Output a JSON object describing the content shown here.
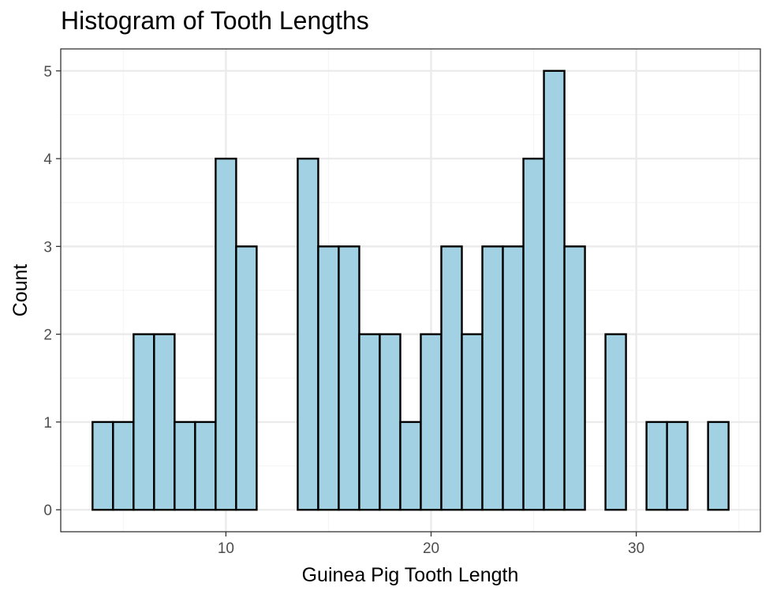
{
  "chart_data": {
    "type": "bar",
    "title": "Histogram of Tooth Lengths",
    "xlabel": "Guinea Pig Tooth Length",
    "ylabel": "Count",
    "bin_width": 1,
    "bins": [
      {
        "x0": 3.5,
        "x1": 4.5,
        "count": 1
      },
      {
        "x0": 4.5,
        "x1": 5.5,
        "count": 1
      },
      {
        "x0": 5.5,
        "x1": 6.5,
        "count": 2
      },
      {
        "x0": 6.5,
        "x1": 7.5,
        "count": 2
      },
      {
        "x0": 7.5,
        "x1": 8.5,
        "count": 1
      },
      {
        "x0": 8.5,
        "x1": 9.5,
        "count": 1
      },
      {
        "x0": 9.5,
        "x1": 10.5,
        "count": 4
      },
      {
        "x0": 10.5,
        "x1": 11.5,
        "count": 3
      },
      {
        "x0": 11.5,
        "x1": 12.5,
        "count": 0
      },
      {
        "x0": 12.5,
        "x1": 13.5,
        "count": 0
      },
      {
        "x0": 13.5,
        "x1": 14.5,
        "count": 4
      },
      {
        "x0": 14.5,
        "x1": 15.5,
        "count": 3
      },
      {
        "x0": 15.5,
        "x1": 16.5,
        "count": 3
      },
      {
        "x0": 16.5,
        "x1": 17.5,
        "count": 2
      },
      {
        "x0": 17.5,
        "x1": 18.5,
        "count": 2
      },
      {
        "x0": 18.5,
        "x1": 19.5,
        "count": 1
      },
      {
        "x0": 19.5,
        "x1": 20.5,
        "count": 2
      },
      {
        "x0": 20.5,
        "x1": 21.5,
        "count": 3
      },
      {
        "x0": 21.5,
        "x1": 22.5,
        "count": 2
      },
      {
        "x0": 22.5,
        "x1": 23.5,
        "count": 3
      },
      {
        "x0": 23.5,
        "x1": 24.5,
        "count": 3
      },
      {
        "x0": 24.5,
        "x1": 25.5,
        "count": 4
      },
      {
        "x0": 25.5,
        "x1": 26.5,
        "count": 5
      },
      {
        "x0": 26.5,
        "x1": 27.5,
        "count": 3
      },
      {
        "x0": 27.5,
        "x1": 28.5,
        "count": 0
      },
      {
        "x0": 28.5,
        "x1": 29.5,
        "count": 2
      },
      {
        "x0": 29.5,
        "x1": 30.5,
        "count": 0
      },
      {
        "x0": 30.5,
        "x1": 31.5,
        "count": 1
      },
      {
        "x0": 31.5,
        "x1": 32.5,
        "count": 1
      },
      {
        "x0": 32.5,
        "x1": 33.5,
        "count": 0
      },
      {
        "x0": 33.5,
        "x1": 34.5,
        "count": 1
      }
    ],
    "xlim": [
      1.95,
      36.05
    ],
    "ylim": [
      -0.25,
      5.25
    ],
    "x_ticks": [
      10,
      20,
      30
    ],
    "x_minor_ticks": [
      5,
      15,
      25,
      35
    ],
    "y_ticks": [
      0,
      1,
      2,
      3,
      4,
      5
    ],
    "y_minor_ticks": [
      0.5,
      1.5,
      2.5,
      3.5,
      4.5
    ],
    "grid": true,
    "legend": "none",
    "colors": {
      "bar_fill": "#a1d1e2",
      "bar_outline": "#000000",
      "grid_major": "#ebebeb",
      "grid_minor": "#f5f5f5",
      "panel_border": "#333333",
      "tick_text": "#4d4d4d"
    }
  }
}
